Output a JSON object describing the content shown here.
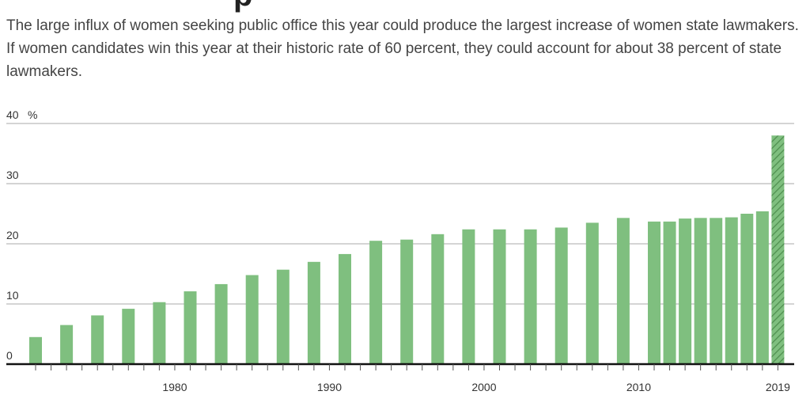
{
  "title_fragment": "p",
  "subtitle": "The large influx of women seeking public office this year could produce the largest increase of women state lawmakers. If women candidates win this year at their historic rate of 60 percent, they could account for about 38 percent of state lawmakers.",
  "colors": {
    "bar": "#7fbf7f",
    "projected_bar": "#5e9e5e",
    "axis": "#111111",
    "grid": "#aaaaaa"
  },
  "chart_data": {
    "type": "bar",
    "ylabel": "%",
    "ylim": [
      0,
      40
    ],
    "yticks": [
      0,
      10,
      20,
      30,
      40
    ],
    "xlim": [
      1970,
      2020
    ],
    "xtick_labels": [
      "1980",
      "1990",
      "2000",
      "2010",
      "2019"
    ],
    "xtick_values": [
      1980,
      1990,
      2000,
      2010,
      2019
    ],
    "grid": true,
    "x": [
      1971,
      1973,
      1975,
      1977,
      1979,
      1981,
      1983,
      1985,
      1987,
      1989,
      1991,
      1993,
      1995,
      1997,
      1999,
      2001,
      2003,
      2005,
      2007,
      2009,
      2011,
      2012,
      2013,
      2014,
      2015,
      2016,
      2017,
      2018,
      2019
    ],
    "values": [
      4.5,
      6.5,
      8.1,
      9.2,
      10.3,
      12.1,
      13.3,
      14.8,
      15.7,
      17.0,
      18.3,
      20.5,
      20.7,
      21.6,
      22.4,
      22.4,
      22.4,
      22.7,
      23.5,
      24.3,
      23.7,
      23.7,
      24.2,
      24.3,
      24.3,
      24.4,
      25.0,
      25.4,
      38.0
    ],
    "projected": [
      false,
      false,
      false,
      false,
      false,
      false,
      false,
      false,
      false,
      false,
      false,
      false,
      false,
      false,
      false,
      false,
      false,
      false,
      false,
      false,
      false,
      false,
      false,
      false,
      false,
      false,
      false,
      false,
      true
    ]
  }
}
